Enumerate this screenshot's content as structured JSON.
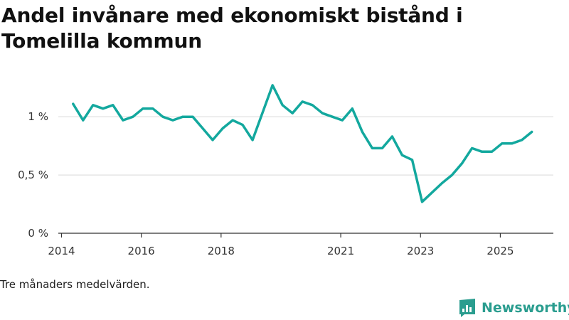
{
  "page": {
    "title": "Andel invånare med ekonomiskt bistånd i Tomelilla kommun",
    "note": "Tre månaders medelvärden.",
    "brand": "Newsworthy"
  },
  "colors": {
    "line": "#13a89e",
    "grid": "#d9d9d9",
    "axis": "#333333",
    "brand": "#2a9d8f"
  },
  "icons": {
    "brand": "newsworthy-chart-logo-icon"
  },
  "chart_data": {
    "type": "line",
    "title": "Andel invånare med ekonomiskt bistånd i Tomelilla kommun",
    "xlabel": "",
    "ylabel": "",
    "grid": true,
    "ylim": [
      0,
      1.3
    ],
    "y_ticks": [
      0,
      0.5,
      1
    ],
    "y_tick_labels": [
      "0 %",
      "0,5 %",
      "1 %"
    ],
    "x_ticks": [
      2014,
      2016,
      2018,
      2021,
      2023,
      2025
    ],
    "x_tick_labels": [
      "2014",
      "2016",
      "2018",
      "2021",
      "2023",
      "2025"
    ],
    "x_range": [
      2013.92,
      2026.33
    ],
    "series": [
      {
        "x": [
          2014.29,
          2014.54,
          2014.79,
          2015.04,
          2015.29,
          2015.54,
          2015.79,
          2016.04,
          2016.29,
          2016.54,
          2016.79,
          2017.04,
          2017.29,
          2017.54,
          2017.79,
          2018.04,
          2018.29,
          2018.54,
          2018.79,
          2019.29,
          2019.54,
          2019.79,
          2020.04,
          2020.29,
          2020.54,
          2020.79,
          2021.04,
          2021.29,
          2021.54,
          2021.79,
          2022.04,
          2022.29,
          2022.54,
          2022.79,
          2023.04,
          2023.54,
          2023.79,
          2024.04,
          2024.29,
          2024.54,
          2024.79,
          2025.04,
          2025.29,
          2025.54,
          2025.79
        ],
        "y": [
          1.11,
          0.97,
          1.1,
          1.07,
          1.1,
          0.97,
          1.0,
          1.07,
          1.07,
          1.0,
          0.97,
          1.0,
          1.0,
          0.9,
          0.8,
          0.9,
          0.97,
          0.93,
          0.8,
          1.27,
          1.1,
          1.03,
          1.13,
          1.1,
          1.03,
          1.0,
          0.97,
          1.07,
          0.87,
          0.73,
          0.73,
          0.83,
          0.67,
          0.63,
          0.27,
          0.43,
          0.5,
          0.6,
          0.73,
          0.7,
          0.7,
          0.77,
          0.77,
          0.8,
          0.87
        ]
      }
    ]
  }
}
